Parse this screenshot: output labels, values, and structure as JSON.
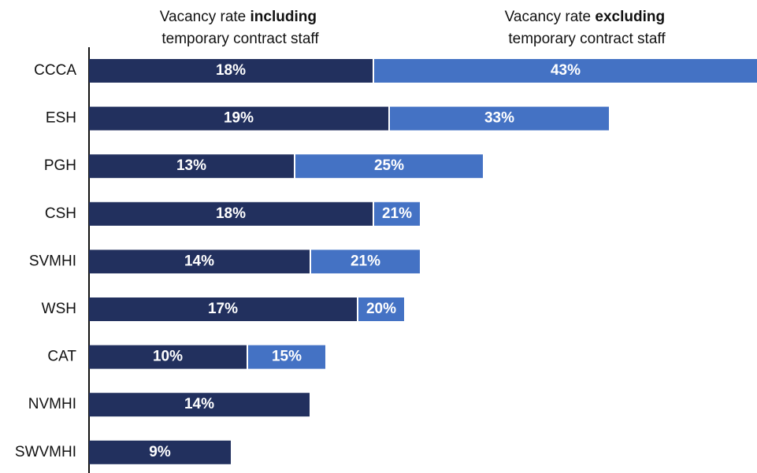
{
  "chart_data": {
    "type": "overlaid-bar",
    "categories": [
      "CCCA",
      "ESH",
      "PGH",
      "CSH",
      "SVMHI",
      "WSH",
      "CAT",
      "NVMHI",
      "SWVMHI"
    ],
    "series": [
      {
        "name": "Vacancy rate including temporary contract staff",
        "name_bold": "including",
        "color": "#22305e",
        "values": [
          18,
          19,
          13,
          18,
          14,
          17,
          10,
          14,
          9
        ],
        "value_labels": [
          "18%",
          "19%",
          "13%",
          "18%",
          "14%",
          "17%",
          "10%",
          "14%",
          "9%"
        ]
      },
      {
        "name": "Vacancy rate excluding temporary contract staff",
        "name_bold": "excluding",
        "color": "#4472c4",
        "values": [
          43,
          33,
          25,
          21,
          21,
          20,
          15,
          null,
          null
        ],
        "value_labels": [
          "43%",
          "33%",
          "25%",
          "21%",
          "21%",
          "20%",
          "15%",
          null,
          null
        ]
      }
    ],
    "xlim": [
      0,
      42.4
    ]
  }
}
